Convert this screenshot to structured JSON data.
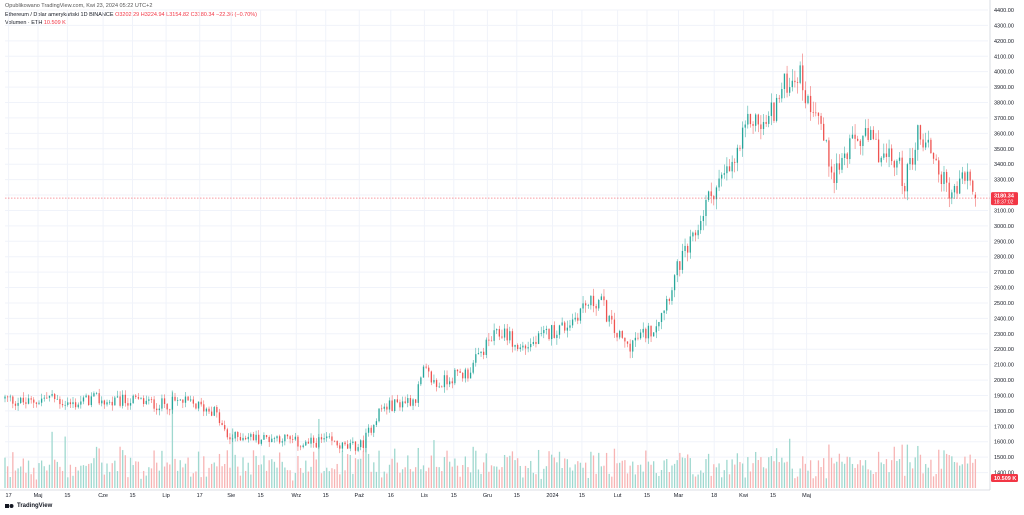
{
  "header": {
    "published": "Opublikowano TradingView.com, Kwi 23, 2024 05:22 UTC+2",
    "symbol": "Ethereum / Dolar amerykański",
    "interval": "1D",
    "exchange": "BINANCE",
    "ohlc_open": "O3202.29",
    "ohlc_high": "H3224.94",
    "ohlc_low": "L3154.82",
    "ohlc_close": "C3180.34",
    "change": "−22.36 (−0.70%)",
    "volume_label": "Volumen · ETH",
    "volume_value": "10.509 K"
  },
  "footer": {
    "brand": "TradingView"
  },
  "colors": {
    "up": "#26a69a",
    "down": "#ef5350",
    "up_vol": "#9fd8cf",
    "down_vol": "#f7b4b4",
    "grid": "#f0f3fa",
    "price_line": "#f23645"
  },
  "chart_data": {
    "type": "candlestick",
    "interval": "1D",
    "ylim": [
      1300,
      4400
    ],
    "y_ticks": [
      1400,
      1500,
      1600,
      1700,
      1800,
      1900,
      2000,
      2100,
      2200,
      2300,
      2400,
      2500,
      2600,
      2700,
      2800,
      2900,
      3000,
      3100,
      3200,
      3300,
      3400,
      3500,
      3600,
      3700,
      3800,
      3900,
      4000,
      4100,
      4200,
      4300,
      4400
    ],
    "y_tick_labels": [
      "1400.00",
      "1500.00",
      "1600.00",
      "1700.00",
      "1800.00",
      "1900.00",
      "2000.00",
      "2100.00",
      "2200.00",
      "2300.00",
      "2400.00",
      "2500.00",
      "2600.00",
      "2700.00",
      "2800.00",
      "2900.00",
      "3000.00",
      "3100.00",
      "3200.00",
      "3300.00",
      "3400.00",
      "3500.00",
      "3600.00",
      "3700.00",
      "3800.00",
      "3900.00",
      "4000.00",
      "4100.00",
      "4200.00",
      "4300.00",
      "4400.00"
    ],
    "x_labels": [
      "17",
      "Maj",
      "15",
      "Cze",
      "15",
      "Lip",
      "17",
      "Sie",
      "15",
      "Wrz",
      "15",
      "Paź",
      "16",
      "Lis",
      "15",
      "Gru",
      "15",
      "2024",
      "15",
      "Lut",
      "15",
      "Mar",
      "18",
      "Kwi",
      "15",
      "Maj"
    ],
    "x_label_days": [
      -14,
      0,
      14,
      31,
      45,
      61,
      77,
      92,
      106,
      123,
      137,
      153,
      168,
      184,
      198,
      214,
      228,
      245,
      259,
      276,
      290,
      305,
      322,
      336,
      350,
      366
    ],
    "x_start": "2023-04-17",
    "last_price_label": "3180.34",
    "countdown_label": "18:37:02",
    "volume_last_label": "10.509 K",
    "close_path": [
      [
        0,
        1880
      ],
      [
        10,
        1850
      ],
      [
        20,
        1890
      ],
      [
        30,
        1840
      ],
      [
        40,
        1880
      ],
      [
        48,
        1850
      ],
      [
        56,
        1870
      ],
      [
        62,
        1860
      ],
      [
        70,
        1840
      ],
      [
        80,
        1860
      ],
      [
        88,
        1830
      ],
      [
        95,
        1800
      ],
      [
        101,
        1620
      ],
      [
        108,
        1640
      ],
      [
        115,
        1620
      ],
      [
        125,
        1630
      ],
      [
        135,
        1580
      ],
      [
        145,
        1610
      ],
      [
        155,
        1560
      ],
      [
        162,
        1580
      ],
      [
        170,
        1810
      ],
      [
        180,
        1860
      ],
      [
        186,
        1880
      ],
      [
        190,
        2060
      ],
      [
        196,
        1960
      ],
      [
        202,
        2020
      ],
      [
        210,
        2050
      ],
      [
        220,
        2260
      ],
      [
        227,
        2320
      ],
      [
        232,
        2200
      ],
      [
        240,
        2240
      ],
      [
        248,
        2320
      ],
      [
        254,
        2350
      ],
      [
        258,
        2400
      ],
      [
        262,
        2480
      ],
      [
        270,
        2520
      ],
      [
        276,
        2320
      ],
      [
        282,
        2220
      ],
      [
        288,
        2280
      ],
      [
        294,
        2340
      ],
      [
        300,
        2520
      ],
      [
        306,
        2760
      ],
      [
        312,
        2900
      ],
      [
        318,
        3150
      ],
      [
        322,
        3250
      ],
      [
        330,
        3380
      ],
      [
        338,
        3700
      ],
      [
        344,
        3640
      ],
      [
        350,
        3800
      ],
      [
        355,
        3950
      ],
      [
        360,
        4000
      ],
      [
        364,
        3800
      ],
      [
        368,
        3800
      ],
      [
        372,
        3500
      ],
      [
        376,
        3350
      ],
      [
        380,
        3430
      ],
      [
        386,
        3560
      ],
      [
        392,
        3560
      ],
      [
        398,
        3450
      ],
      [
        405,
        3400
      ],
      [
        408,
        3280
      ],
      [
        414,
        3600
      ],
      [
        420,
        3500
      ],
      [
        425,
        3300
      ],
      [
        430,
        3200
      ],
      [
        436,
        3350
      ],
      [
        440,
        3180
      ]
    ],
    "candle_days": 372,
    "volume": {
      "ylim": [
        0,
        500000
      ]
    }
  }
}
